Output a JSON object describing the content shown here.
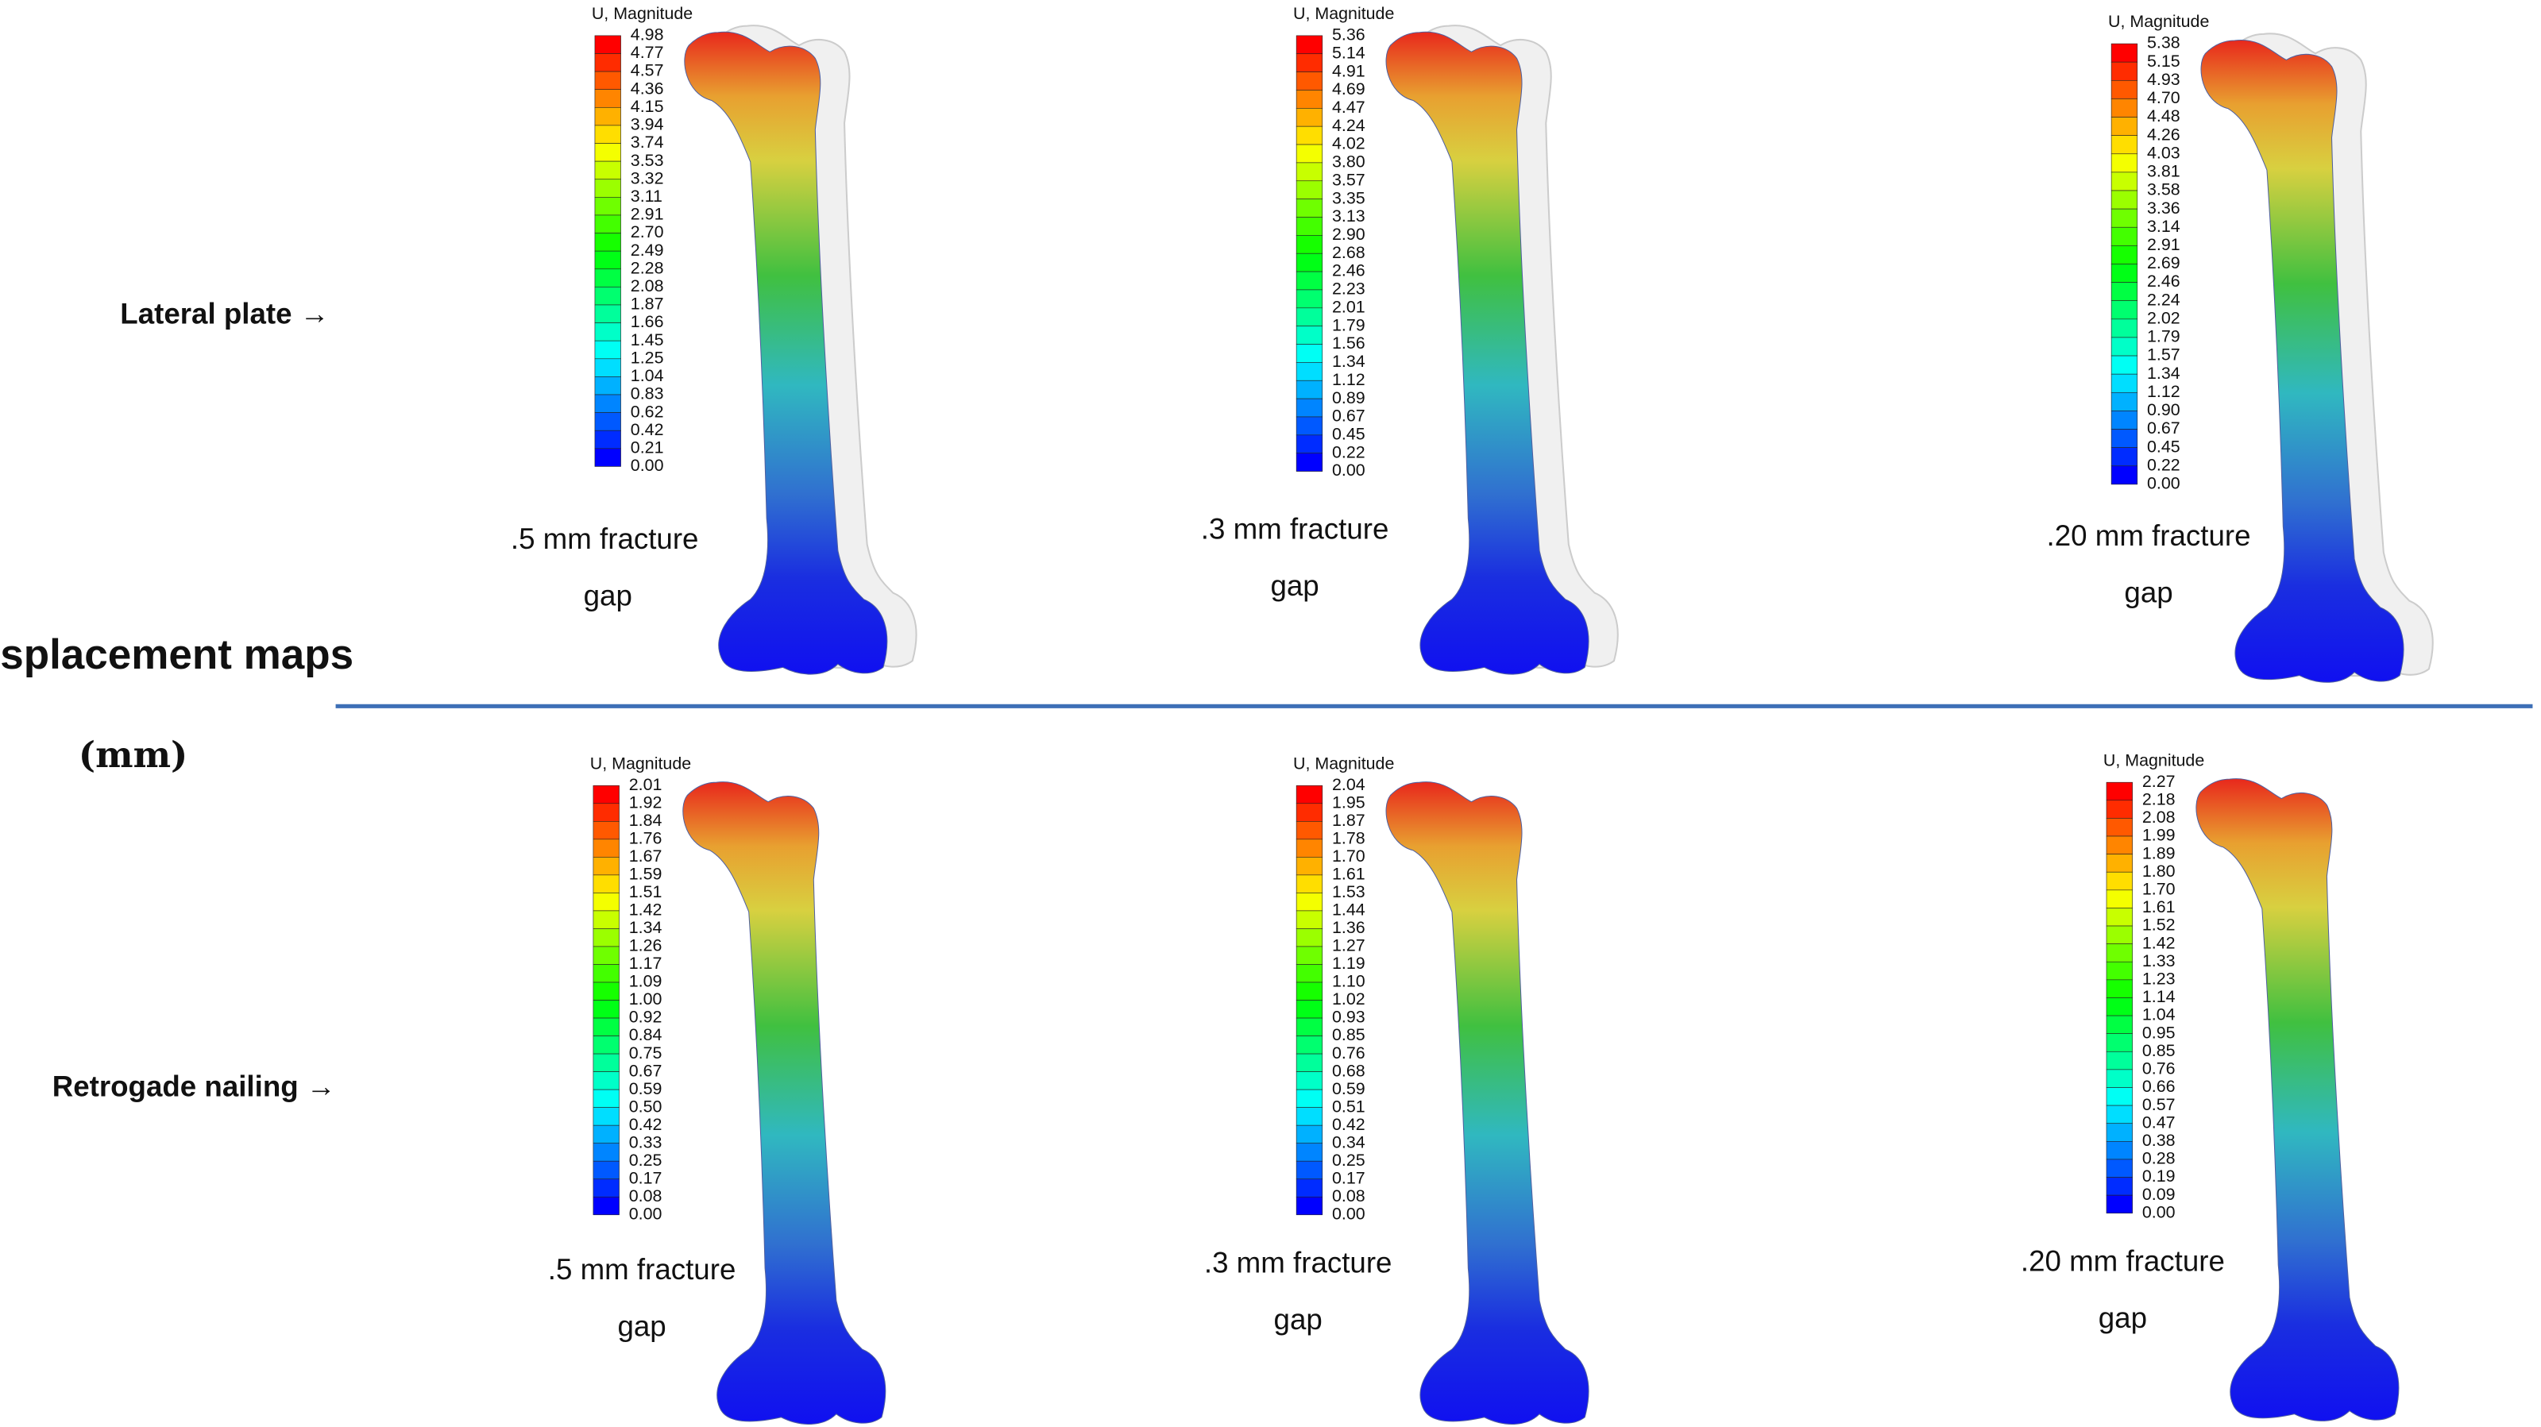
{
  "heading": {
    "title": "Displacement maps",
    "unit": "(mm)"
  },
  "rows": [
    {
      "label": "Lateral plate →",
      "panels": [
        {
          "legend_title": "U, Magnitude",
          "values": [
            "4.98",
            "4.77",
            "4.57",
            "4.36",
            "4.15",
            "3.94",
            "3.74",
            "3.53",
            "3.32",
            "3.11",
            "2.91",
            "2.70",
            "2.49",
            "2.28",
            "2.08",
            "1.87",
            "1.66",
            "1.45",
            "1.25",
            "1.04",
            "0.83",
            "0.62",
            "0.42",
            "0.21",
            "0.00"
          ],
          "caption": [
            ".5 mm fracture",
            "gap"
          ]
        },
        {
          "legend_title": "U, Magnitude",
          "values": [
            "5.36",
            "5.14",
            "4.91",
            "4.69",
            "4.47",
            "4.24",
            "4.02",
            "3.80",
            "3.57",
            "3.35",
            "3.13",
            "2.90",
            "2.68",
            "2.46",
            "2.23",
            "2.01",
            "1.79",
            "1.56",
            "1.34",
            "1.12",
            "0.89",
            "0.67",
            "0.45",
            "0.22",
            "0.00"
          ],
          "caption": [
            ".3 mm fracture",
            "gap"
          ]
        },
        {
          "legend_title": "U, Magnitude",
          "values": [
            "5.38",
            "5.15",
            "4.93",
            "4.70",
            "4.48",
            "4.26",
            "4.03",
            "3.81",
            "3.58",
            "3.36",
            "3.14",
            "2.91",
            "2.69",
            "2.46",
            "2.24",
            "2.02",
            "1.79",
            "1.57",
            "1.34",
            "1.12",
            "0.90",
            "0.67",
            "0.45",
            "0.22",
            "0.00"
          ],
          "caption": [
            ".20 mm fracture",
            "gap"
          ]
        }
      ]
    },
    {
      "label": "Retrogade nailing →",
      "panels": [
        {
          "legend_title": "U, Magnitude",
          "values": [
            "2.01",
            "1.92",
            "1.84",
            "1.76",
            "1.67",
            "1.59",
            "1.51",
            "1.42",
            "1.34",
            "1.26",
            "1.17",
            "1.09",
            "1.00",
            "0.92",
            "0.84",
            "0.75",
            "0.67",
            "0.59",
            "0.50",
            "0.42",
            "0.33",
            "0.25",
            "0.17",
            "0.08",
            "0.00"
          ],
          "caption": [
            ".5 mm fracture",
            "gap"
          ]
        },
        {
          "legend_title": "U, Magnitude",
          "values": [
            "2.04",
            "1.95",
            "1.87",
            "1.78",
            "1.70",
            "1.61",
            "1.53",
            "1.44",
            "1.36",
            "1.27",
            "1.19",
            "1.10",
            "1.02",
            "0.93",
            "0.85",
            "0.76",
            "0.68",
            "0.59",
            "0.51",
            "0.42",
            "0.34",
            "0.25",
            "0.17",
            "0.08",
            "0.00"
          ],
          "caption": [
            ".3 mm fracture",
            "gap"
          ]
        },
        {
          "legend_title": "U, Magnitude",
          "values": [
            "2.27",
            "2.18",
            "2.08",
            "1.99",
            "1.89",
            "1.80",
            "1.70",
            "1.61",
            "1.52",
            "1.42",
            "1.33",
            "1.23",
            "1.14",
            "1.04",
            "0.95",
            "0.85",
            "0.76",
            "0.66",
            "0.57",
            "0.47",
            "0.38",
            "0.28",
            "0.19",
            "0.09",
            "0.00"
          ],
          "caption": [
            ".20 mm fracture",
            "gap"
          ]
        }
      ]
    }
  ]
}
